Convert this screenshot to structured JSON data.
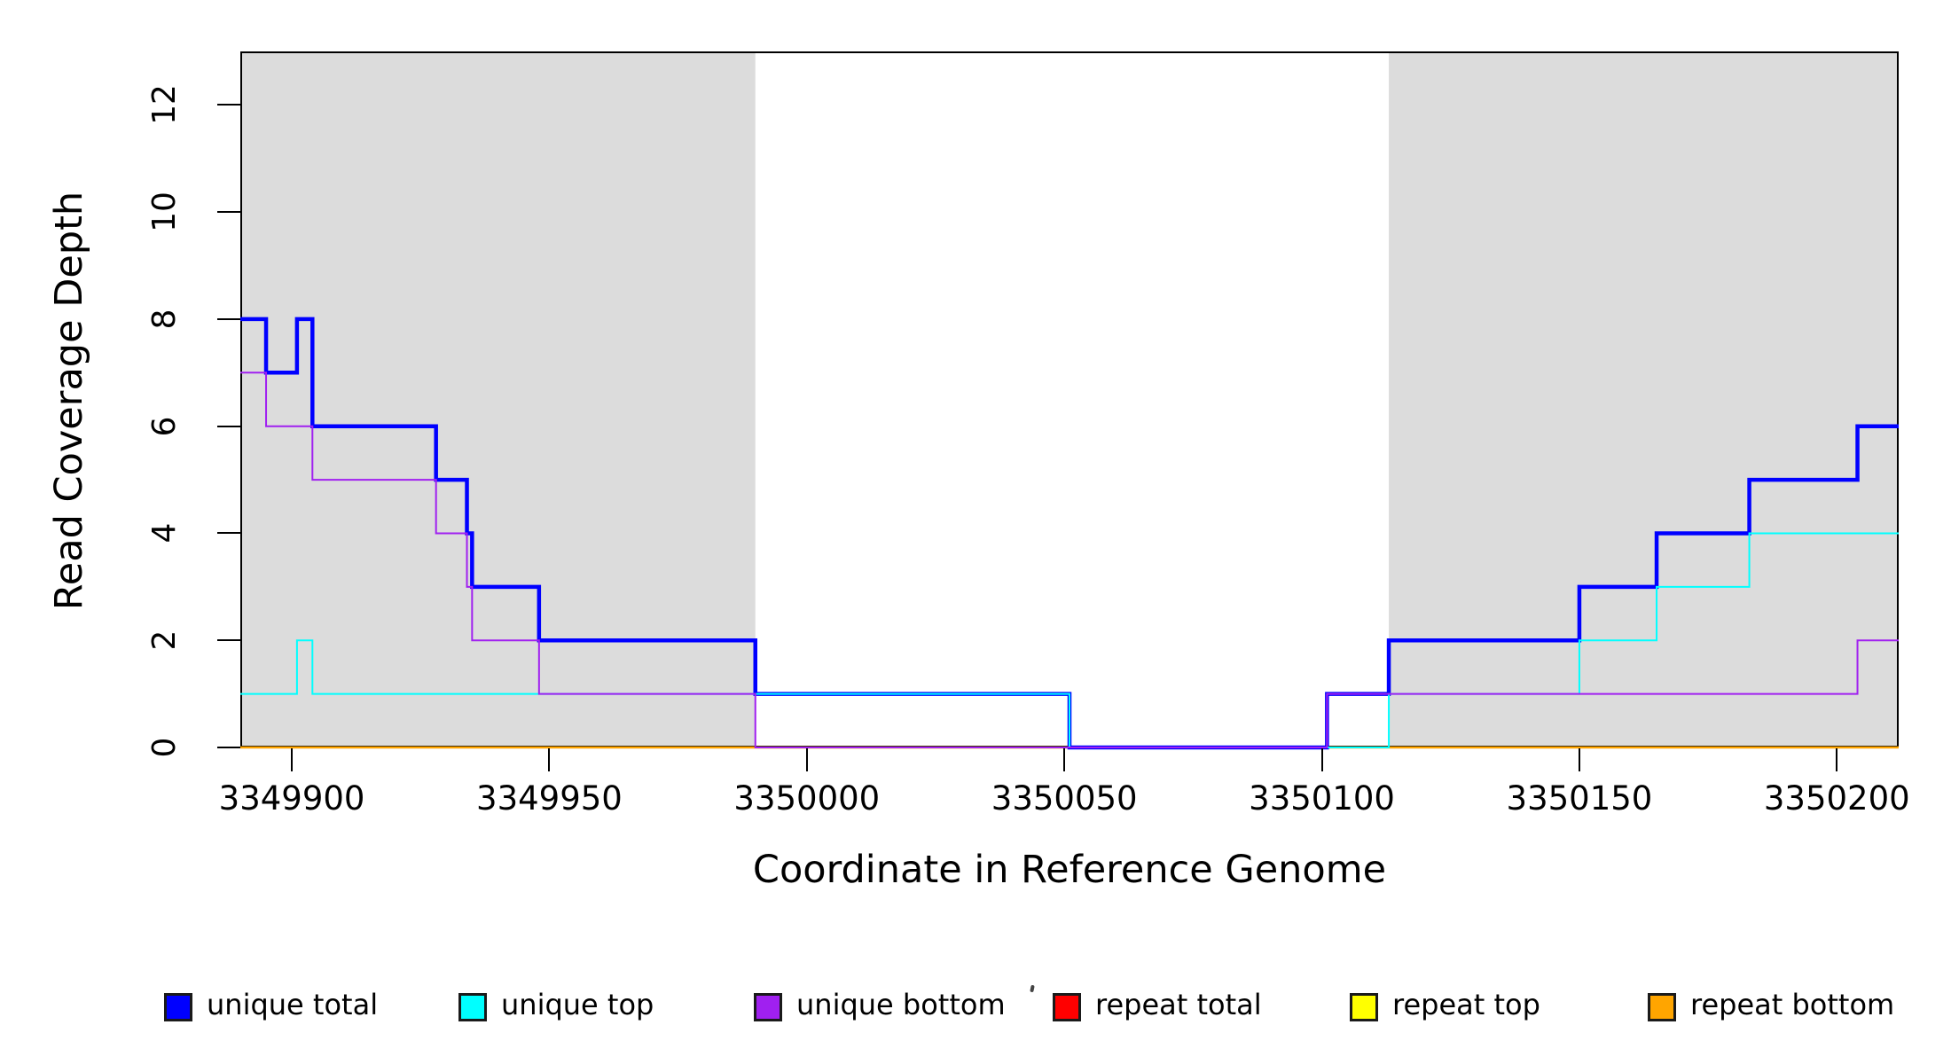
{
  "figure": {
    "kind": "R base-graphics step plot of sequencing read coverage",
    "background": "#ffffff",
    "border_color": "#000000"
  },
  "axes": {
    "x": {
      "label": "Coordinate in Reference Genome",
      "ticks": [
        3349900,
        3349950,
        3350000,
        3350050,
        3350100,
        3350150,
        3350200
      ],
      "range": [
        3349890,
        3350212
      ]
    },
    "y": {
      "label": "Read Coverage Depth",
      "ticks": [
        0,
        2,
        4,
        6,
        8,
        10,
        12
      ],
      "range": [
        0,
        13
      ]
    }
  },
  "chart_data": {
    "type": "line",
    "subtype": "step-after",
    "title": "",
    "xlabel": "Coordinate in Reference Genome",
    "ylabel": "Read Coverage Depth",
    "x_range": [
      3349890,
      3350212
    ],
    "y_range": [
      0,
      13
    ],
    "x_end": 3350212,
    "grid": false,
    "band_color": "#DCDCDC",
    "repeat_regions": [
      [
        3349890,
        3349990
      ],
      [
        3350113,
        3350212
      ]
    ],
    "draw_order": [
      "repeat_total",
      "repeat_top",
      "repeat_bottom",
      "unique_total",
      "unique_top",
      "unique_bottom"
    ],
    "series": [
      {
        "key": "unique_total",
        "name": "unique total",
        "color": "#0000FF",
        "line_width": 4.5,
        "steps": [
          [
            3349890,
            8
          ],
          [
            3349895,
            7
          ],
          [
            3349901,
            8
          ],
          [
            3349904,
            6
          ],
          [
            3349928,
            5
          ],
          [
            3349934,
            4
          ],
          [
            3349935,
            3
          ],
          [
            3349948,
            2
          ],
          [
            3349990,
            1
          ],
          [
            3350051,
            0
          ],
          [
            3350101,
            1
          ],
          [
            3350113,
            2
          ],
          [
            3350150,
            3
          ],
          [
            3350165,
            4
          ],
          [
            3350183,
            5
          ],
          [
            3350204,
            6
          ]
        ]
      },
      {
        "key": "unique_top",
        "name": "unique top",
        "color": "#00FFFF",
        "line_width": 2,
        "steps": [
          [
            3349890,
            1
          ],
          [
            3349901,
            2
          ],
          [
            3349904,
            1
          ],
          [
            3350051,
            0
          ],
          [
            3350113,
            1
          ],
          [
            3350150,
            2
          ],
          [
            3350165,
            3
          ],
          [
            3350183,
            4
          ]
        ]
      },
      {
        "key": "unique_bottom",
        "name": "unique bottom",
        "color": "#A020F0",
        "line_width": 2,
        "steps": [
          [
            3349890,
            7
          ],
          [
            3349895,
            6
          ],
          [
            3349904,
            5
          ],
          [
            3349928,
            4
          ],
          [
            3349934,
            3
          ],
          [
            3349935,
            2
          ],
          [
            3349948,
            1
          ],
          [
            3349990,
            0
          ],
          [
            3350101,
            1
          ],
          [
            3350204,
            2
          ]
        ]
      },
      {
        "key": "repeat_total",
        "name": "repeat total",
        "color": "#FF0000",
        "line_width": 2,
        "steps": [
          [
            3349890,
            0
          ]
        ]
      },
      {
        "key": "repeat_top",
        "name": "repeat top",
        "color": "#FFFF00",
        "line_width": 2,
        "steps": [
          [
            3349890,
            0
          ]
        ]
      },
      {
        "key": "repeat_bottom",
        "name": "repeat bottom",
        "color": "#FFA500",
        "line_width": 2.5,
        "steps": [
          [
            3349890,
            0
          ]
        ]
      }
    ],
    "legend_position": "bottom"
  },
  "legend": {
    "items": [
      {
        "key": "unique_total",
        "label": "unique total",
        "color": "#0000FF"
      },
      {
        "key": "unique_top",
        "label": "unique top",
        "color": "#00FFFF"
      },
      {
        "key": "unique_bottom",
        "label": "unique bottom",
        "color": "#A020F0"
      },
      {
        "key": "repeat_total",
        "label": "repeat total",
        "color": "#FF0000"
      },
      {
        "key": "repeat_top",
        "label": "repeat top",
        "color": "#FFFF00"
      },
      {
        "key": "repeat_bottom",
        "label": "repeat bottom",
        "color": "#FFA500"
      }
    ]
  }
}
